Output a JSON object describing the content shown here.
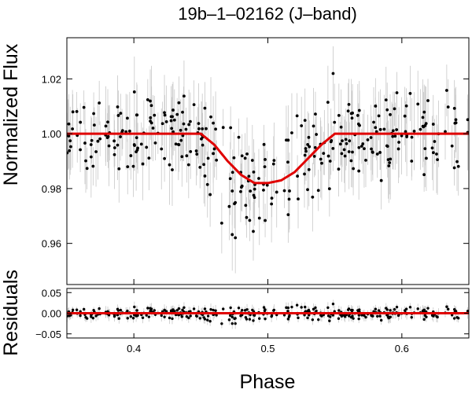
{
  "chart_data": [
    {
      "type": "scatter",
      "title": "19b–1–02162 (J–band)",
      "ylabel": "Normalized Flux",
      "xlabel": "",
      "xlim": [
        0.35,
        0.65
      ],
      "ylim": [
        0.945,
        1.035
      ],
      "x_ticks": [
        0.4,
        0.5,
        0.6
      ],
      "y_ticks": [
        0.96,
        0.98,
        1.0,
        1.02
      ],
      "y_tick_labels": [
        "0.96",
        "0.98",
        "1.00",
        "1.02"
      ],
      "series": [
        {
          "name": "data",
          "style": "points with vertical error bars",
          "color": "#000000",
          "errorbar_color": "#c8c8c8"
        },
        {
          "name": "transit model",
          "style": "line",
          "color": "#e00000",
          "x": [
            0.35,
            0.45,
            0.46,
            0.47,
            0.48,
            0.49,
            0.5,
            0.51,
            0.52,
            0.53,
            0.54,
            0.55,
            0.65
          ],
          "y": [
            1.0,
            1.0,
            0.996,
            0.99,
            0.985,
            0.982,
            0.982,
            0.983,
            0.986,
            0.991,
            0.996,
            1.0,
            1.0
          ]
        }
      ]
    },
    {
      "type": "scatter",
      "title": "",
      "ylabel": "Residuals",
      "xlabel": "Phase",
      "xlim": [
        0.35,
        0.65
      ],
      "ylim": [
        -0.06,
        0.06
      ],
      "x_ticks": [
        0.4,
        0.5,
        0.6
      ],
      "x_tick_labels": [
        "0.4",
        "0.5",
        "0.6"
      ],
      "y_ticks": [
        -0.05,
        0.0,
        0.05
      ],
      "y_tick_labels": [
        "−0.05",
        "0.00",
        "0.05"
      ],
      "series": [
        {
          "name": "residuals",
          "style": "points with vertical error bars",
          "color": "#000000",
          "errorbar_color": "#c8c8c8"
        },
        {
          "name": "zero line",
          "style": "line",
          "color": "#e00000",
          "x": [
            0.35,
            0.65
          ],
          "y": [
            0,
            0
          ]
        }
      ]
    }
  ]
}
